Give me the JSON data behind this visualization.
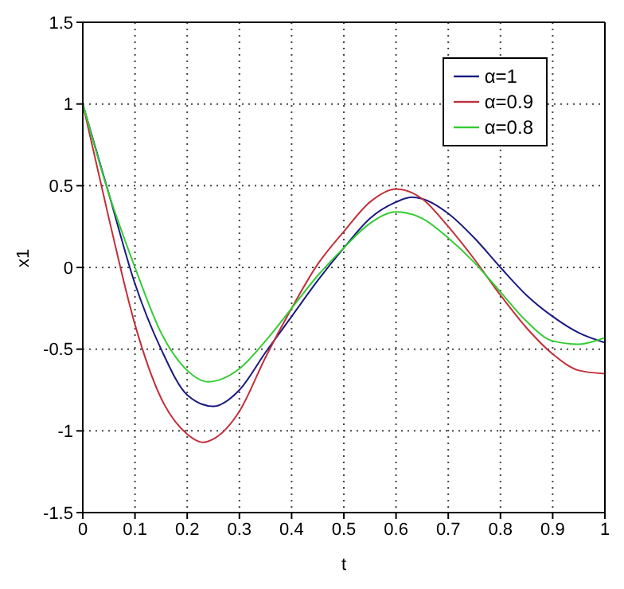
{
  "chart_data": {
    "type": "line",
    "xlabel": "t",
    "ylabel": "x1",
    "xlim": [
      0,
      1
    ],
    "xticks": [
      0,
      0.1,
      0.2,
      0.3,
      0.4,
      0.5,
      0.6,
      0.7,
      0.8,
      0.9,
      1
    ],
    "ylim": [
      -1.5,
      1.5
    ],
    "yticks": [
      -1.5,
      -1,
      -0.5,
      0,
      0.5,
      1,
      1.5
    ],
    "grid": true,
    "legend": "top right",
    "marker": "none",
    "line_style": "solid",
    "series": [
      {
        "name": "α=1",
        "color": "#1a1a80",
        "x": [
          0,
          0.05,
          0.1,
          0.15,
          0.2,
          0.25,
          0.3,
          0.35,
          0.4,
          0.45,
          0.5,
          0.55,
          0.6,
          0.63,
          0.65,
          0.7,
          0.75,
          0.8,
          0.85,
          0.9,
          0.95,
          1
        ],
        "values": [
          1,
          0.45,
          -0.1,
          -0.5,
          -0.78,
          -0.85,
          -0.75,
          -0.52,
          -0.3,
          -0.08,
          0.12,
          0.3,
          0.4,
          0.43,
          0.42,
          0.33,
          0.18,
          0,
          -0.17,
          -0.3,
          -0.4,
          -0.46
        ]
      },
      {
        "name": "α=0.9",
        "color": "#c0303a",
        "x": [
          0,
          0.05,
          0.1,
          0.15,
          0.2,
          0.23,
          0.25,
          0.3,
          0.35,
          0.4,
          0.45,
          0.5,
          0.55,
          0.6,
          0.65,
          0.7,
          0.75,
          0.8,
          0.85,
          0.9,
          0.95,
          1
        ],
        "values": [
          1,
          0.3,
          -0.35,
          -0.8,
          -1.02,
          -1.07,
          -1.05,
          -0.88,
          -0.55,
          -0.25,
          0.02,
          0.22,
          0.4,
          0.48,
          0.42,
          0.25,
          0.05,
          -0.17,
          -0.37,
          -0.53,
          -0.63,
          -0.65
        ]
      },
      {
        "name": "α=0.8",
        "color": "#33cc33",
        "x": [
          0,
          0.05,
          0.1,
          0.15,
          0.2,
          0.24,
          0.3,
          0.35,
          0.4,
          0.45,
          0.5,
          0.55,
          0.6,
          0.65,
          0.7,
          0.75,
          0.8,
          0.85,
          0.9,
          0.95,
          1
        ],
        "values": [
          1,
          0.45,
          0,
          -0.4,
          -0.63,
          -0.7,
          -0.62,
          -0.45,
          -0.25,
          -0.05,
          0.12,
          0.27,
          0.34,
          0.3,
          0.18,
          0.03,
          -0.15,
          -0.33,
          -0.45,
          -0.47,
          -0.43
        ]
      }
    ]
  }
}
